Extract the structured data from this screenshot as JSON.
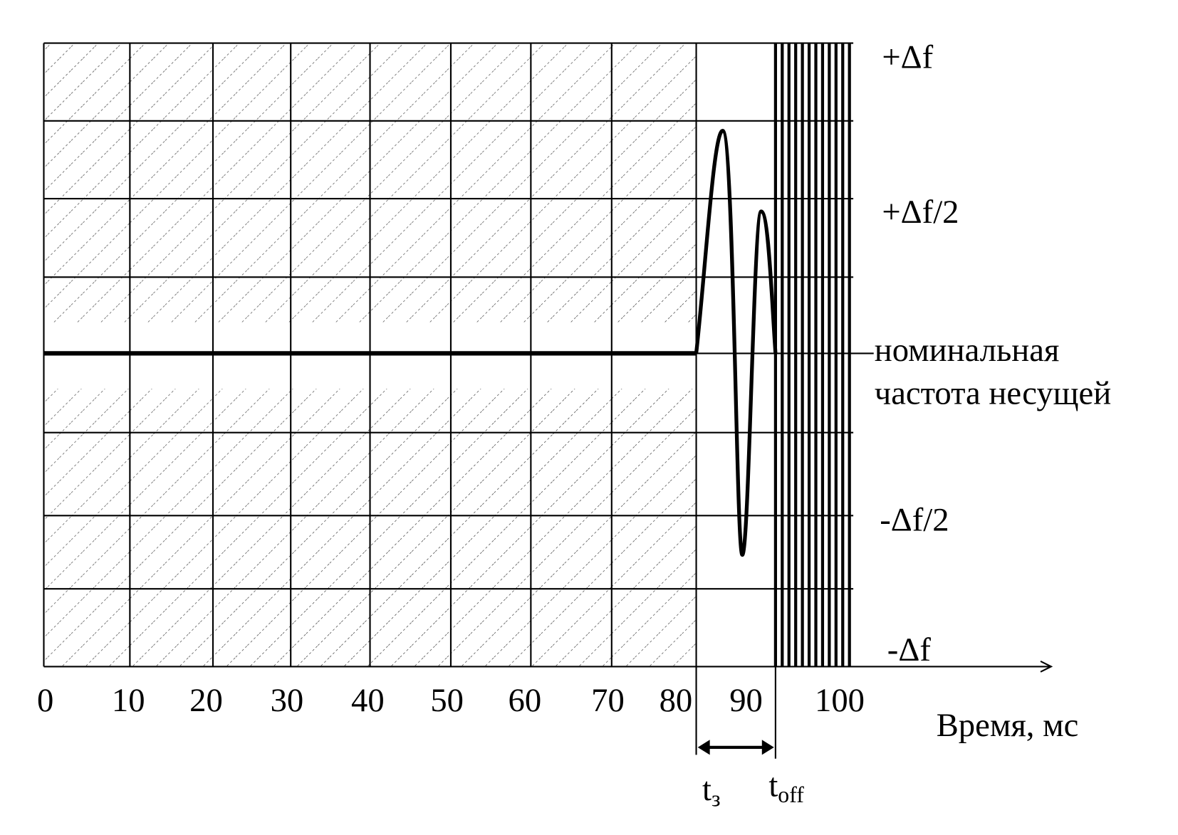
{
  "x_axis": {
    "tick_labels": [
      "0",
      "10",
      "20",
      "30",
      "40",
      "50",
      "60",
      "70",
      "80",
      "90",
      "100"
    ],
    "title": "Время, мс"
  },
  "y_labels": {
    "top": "+Δf",
    "half_top": "+Δf/2",
    "nominal_1": "номинальная",
    "nominal_2": "частота несущей",
    "half_bottom": "-Δf/2",
    "bottom": "-Δf"
  },
  "markers": [
    {
      "base": "t",
      "sub": "з"
    },
    {
      "base": "t",
      "sub": "off"
    }
  ]
}
